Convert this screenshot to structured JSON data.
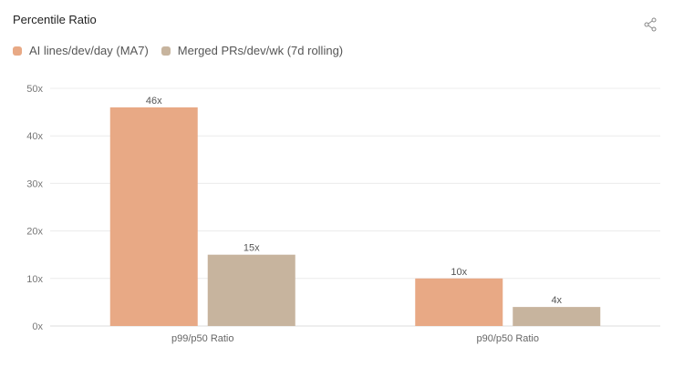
{
  "chart_data": {
    "type": "bar",
    "title": "Percentile Ratio",
    "categories": [
      "p99/p50 Ratio",
      "p90/p50 Ratio"
    ],
    "series": [
      {
        "name": "AI lines/dev/day (MA7)",
        "values": [
          46,
          10
        ],
        "labels": [
          "46x",
          "10x"
        ],
        "color": "#e8a985"
      },
      {
        "name": "Merged PRs/dev/wk (7d rolling)",
        "values": [
          15,
          4
        ],
        "labels": [
          "15x",
          "4x"
        ],
        "color": "#c7b49e"
      }
    ],
    "yticks": [
      "0x",
      "10x",
      "20x",
      "30x",
      "40x",
      "50x"
    ],
    "ylim": [
      0,
      50
    ],
    "grid": true,
    "legend_position": "top-left"
  },
  "toolbar": {
    "share_icon": "share-icon"
  }
}
